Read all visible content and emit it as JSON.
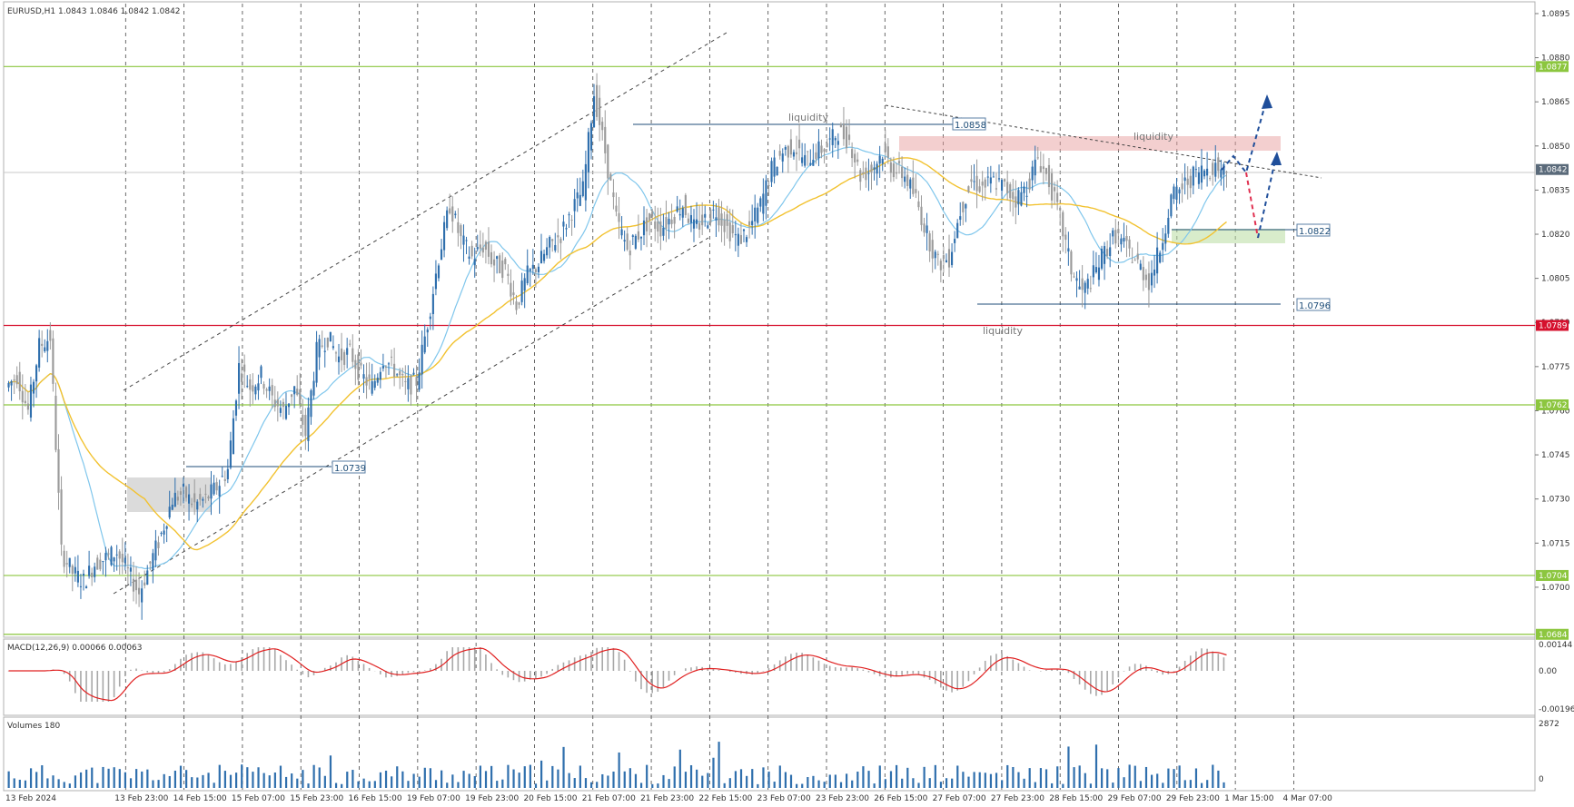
{
  "window": {
    "symbol_line": "EURUSD,H1  1.0843 1.0846 1.0842 1.0842"
  },
  "price_axis": {
    "ticks": [
      "1.0895",
      "1.0880",
      "1.0865",
      "1.0850",
      "1.0835",
      "1.0820",
      "1.0805",
      "1.0790",
      "1.0775",
      "1.0760",
      "1.0745",
      "1.0730",
      "1.0715",
      "1.0700"
    ],
    "range": [
      1.0683,
      1.0899
    ]
  },
  "price_tags": [
    {
      "value": "1.0877",
      "color": "#8cc63f"
    },
    {
      "value": "1.0842",
      "color": "#5a6a7a"
    },
    {
      "value": "1.0789",
      "color": "#d6102d"
    },
    {
      "value": "1.0762",
      "color": "#8cc63f"
    },
    {
      "value": "1.0704",
      "color": "#8cc63f"
    },
    {
      "value": "1.0684",
      "color": "#8cc63f"
    }
  ],
  "levels": [
    {
      "price": 1.0877,
      "color": "#8cc63f"
    },
    {
      "price": 1.0789,
      "color": "#d6102d"
    },
    {
      "price": 1.0762,
      "color": "#8cc63f"
    },
    {
      "price": 1.0704,
      "color": "#8cc63f"
    },
    {
      "price": 1.0684,
      "color": "#8cc63f"
    }
  ],
  "time_axis": [
    "13 Feb 2024",
    "13 Feb 23:00",
    "14 Feb 15:00",
    "15 Feb 07:00",
    "15 Feb 23:00",
    "16 Feb 15:00",
    "19 Feb 07:00",
    "19 Feb 23:00",
    "20 Feb 15:00",
    "21 Feb 07:00",
    "21 Feb 23:00",
    "22 Feb 15:00",
    "23 Feb 07:00",
    "23 Feb 23:00",
    "26 Feb 15:00",
    "27 Feb 07:00",
    "27 Feb 23:00",
    "28 Feb 15:00",
    "29 Feb 07:00",
    "29 Feb 23:00",
    "1 Mar 15:00",
    "4 Mar 07:00"
  ],
  "annotations": {
    "liquidity_top_left": "liquidity",
    "liquidity_top_right": "liquidity",
    "liquidity_bottom": "liquidity",
    "box_1_0858": "1.0858",
    "box_1_0822": "1.0822",
    "box_1_0796": "1.0796",
    "box_1_0739": "1.0739"
  },
  "macd": {
    "label": "MACD(12,26,9) 0.00066 0.00063",
    "ticks": [
      "0.00144",
      "0.00",
      "-0.00196"
    ]
  },
  "volumes": {
    "label": "Volumes 180",
    "ticks": [
      "2872",
      "0"
    ]
  },
  "chart_data": {
    "type": "candlestick",
    "symbol": "EURUSD",
    "timeframe": "H1",
    "ohlc_last": {
      "open": 1.0843,
      "high": 1.0846,
      "low": 1.0842,
      "close": 1.0842
    },
    "close_path": [
      [
        0,
        1.0768
      ],
      [
        1,
        1.0772
      ],
      [
        2,
        1.076
      ],
      [
        3,
        1.0782
      ],
      [
        4,
        1.0785
      ],
      [
        5,
        1.0712
      ],
      [
        6,
        1.0705
      ],
      [
        7,
        1.0702
      ],
      [
        8,
        1.0708
      ],
      [
        9,
        1.071
      ],
      [
        10,
        1.0712
      ],
      [
        11,
        1.0705
      ],
      [
        12,
        1.0698
      ],
      [
        13,
        1.0708
      ],
      [
        14,
        1.0718
      ],
      [
        15,
        1.073
      ],
      [
        16,
        1.0732
      ],
      [
        17,
        1.0728
      ],
      [
        18,
        1.073
      ],
      [
        19,
        1.0734
      ],
      [
        20,
        1.074
      ],
      [
        21,
        1.0775
      ],
      [
        22,
        1.0768
      ],
      [
        23,
        1.0772
      ],
      [
        24,
        1.0764
      ],
      [
        25,
        1.076
      ],
      [
        26,
        1.0768
      ],
      [
        27,
        1.0752
      ],
      [
        28,
        1.078
      ],
      [
        29,
        1.0785
      ],
      [
        30,
        1.0778
      ],
      [
        31,
        1.078
      ],
      [
        32,
        1.0772
      ],
      [
        33,
        1.0768
      ],
      [
        34,
        1.0778
      ],
      [
        35,
        1.0774
      ],
      [
        36,
        1.0768
      ],
      [
        37,
        1.077
      ],
      [
        38,
        1.079
      ],
      [
        39,
        1.0812
      ],
      [
        40,
        1.083
      ],
      [
        41,
        1.0818
      ],
      [
        42,
        1.0812
      ],
      [
        43,
        1.0816
      ],
      [
        44,
        1.081
      ],
      [
        45,
        1.0808
      ],
      [
        46,
        1.0796
      ],
      [
        47,
        1.0806
      ],
      [
        48,
        1.081
      ],
      [
        49,
        1.0816
      ],
      [
        50,
        1.082
      ],
      [
        51,
        1.0828
      ],
      [
        52,
        1.0835
      ],
      [
        53,
        1.0868
      ],
      [
        54,
        1.0848
      ],
      [
        55,
        1.0825
      ],
      [
        56,
        1.0815
      ],
      [
        57,
        1.082
      ],
      [
        58,
        1.0825
      ],
      [
        59,
        1.0822
      ],
      [
        60,
        1.0826
      ],
      [
        61,
        1.083
      ],
      [
        62,
        1.0822
      ],
      [
        63,
        1.0825
      ],
      [
        64,
        1.0828
      ],
      [
        65,
        1.0822
      ],
      [
        66,
        1.0818
      ],
      [
        67,
        1.0822
      ],
      [
        68,
        1.083
      ],
      [
        69,
        1.0842
      ],
      [
        70,
        1.0848
      ],
      [
        71,
        1.085
      ],
      [
        72,
        1.0845
      ],
      [
        73,
        1.0848
      ],
      [
        74,
        1.085
      ],
      [
        75,
        1.0855
      ],
      [
        76,
        1.0852
      ],
      [
        77,
        1.084
      ],
      [
        78,
        1.0842
      ],
      [
        79,
        1.0848
      ],
      [
        80,
        1.0842
      ],
      [
        81,
        1.084
      ],
      [
        82,
        1.0832
      ],
      [
        83,
        1.082
      ],
      [
        84,
        1.081
      ],
      [
        85,
        1.0812
      ],
      [
        86,
        1.0828
      ],
      [
        87,
        1.0838
      ],
      [
        88,
        1.0836
      ],
      [
        89,
        1.0838
      ],
      [
        90,
        1.0836
      ],
      [
        91,
        1.0832
      ],
      [
        92,
        1.0836
      ],
      [
        93,
        1.0846
      ],
      [
        94,
        1.0838
      ],
      [
        95,
        1.0825
      ],
      [
        96,
        1.0808
      ],
      [
        97,
        1.08
      ],
      [
        98,
        1.0806
      ],
      [
        99,
        1.0814
      ],
      [
        100,
        1.082
      ],
      [
        101,
        1.0815
      ],
      [
        102,
        1.081
      ],
      [
        103,
        1.0804
      ],
      [
        104,
        1.0815
      ],
      [
        105,
        1.0832
      ],
      [
        106,
        1.0836
      ],
      [
        107,
        1.084
      ],
      [
        108,
        1.0842
      ],
      [
        109,
        1.0843
      ],
      [
        110,
        1.0842
      ]
    ]
  }
}
